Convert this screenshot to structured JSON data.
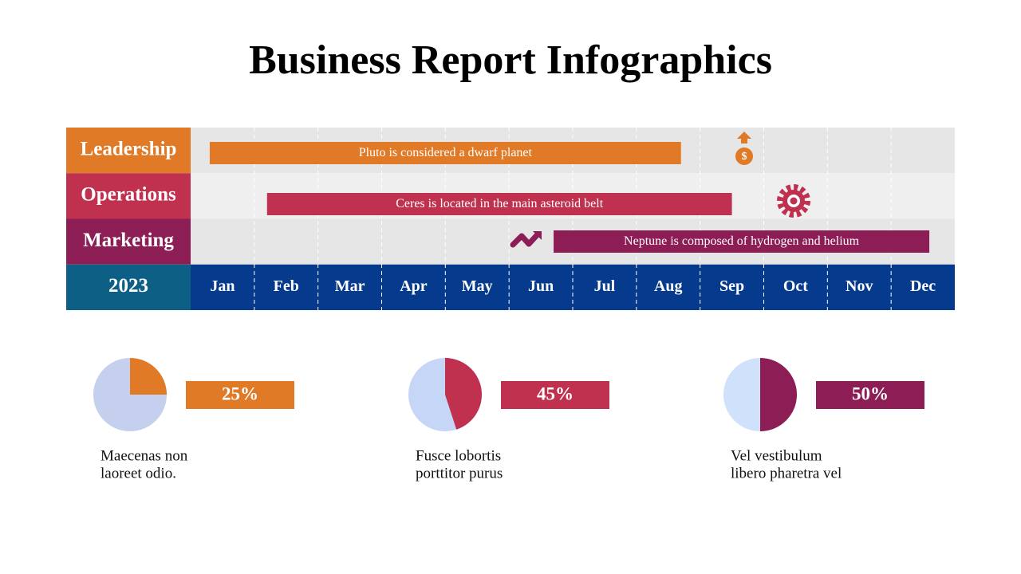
{
  "title": "Business Report Infographics",
  "timeline": {
    "year": "2023",
    "months": [
      "Jan",
      "Feb",
      "Mar",
      "Apr",
      "May",
      "Jun",
      "Jul",
      "Aug",
      "Sep",
      "Oct",
      "Nov",
      "Dec"
    ],
    "rows": [
      {
        "label": "Leadership",
        "color": "#e07a26",
        "bar_text": "Pluto is considered a dwarf planet",
        "start": 0.3,
        "end": 7.7
      },
      {
        "label": "Operations",
        "color": "#c0304f",
        "bar_text": "Ceres is located in the main asteroid belt",
        "start": 1.2,
        "end": 8.5
      },
      {
        "label": "Marketing",
        "color": "#8c1d55",
        "bar_text": "Neptune is composed of hydrogen and helium",
        "start": 5.7,
        "end": 11.6
      }
    ]
  },
  "stats": [
    {
      "value": 25,
      "label": "25%",
      "color": "#e07a26",
      "base": "#c5cfee",
      "text": [
        "Maecenas non",
        "laoreet odio."
      ]
    },
    {
      "value": 45,
      "label": "45%",
      "color": "#c0304f",
      "base": "#c6d6f6",
      "text": [
        "Fusce lobortis",
        "porttitor purus"
      ]
    },
    {
      "value": 50,
      "label": "50%",
      "color": "#8c1d55",
      "base": "#cfe1fb",
      "text": [
        "Vel vestibulum",
        "libero pharetra vel"
      ]
    }
  ]
}
